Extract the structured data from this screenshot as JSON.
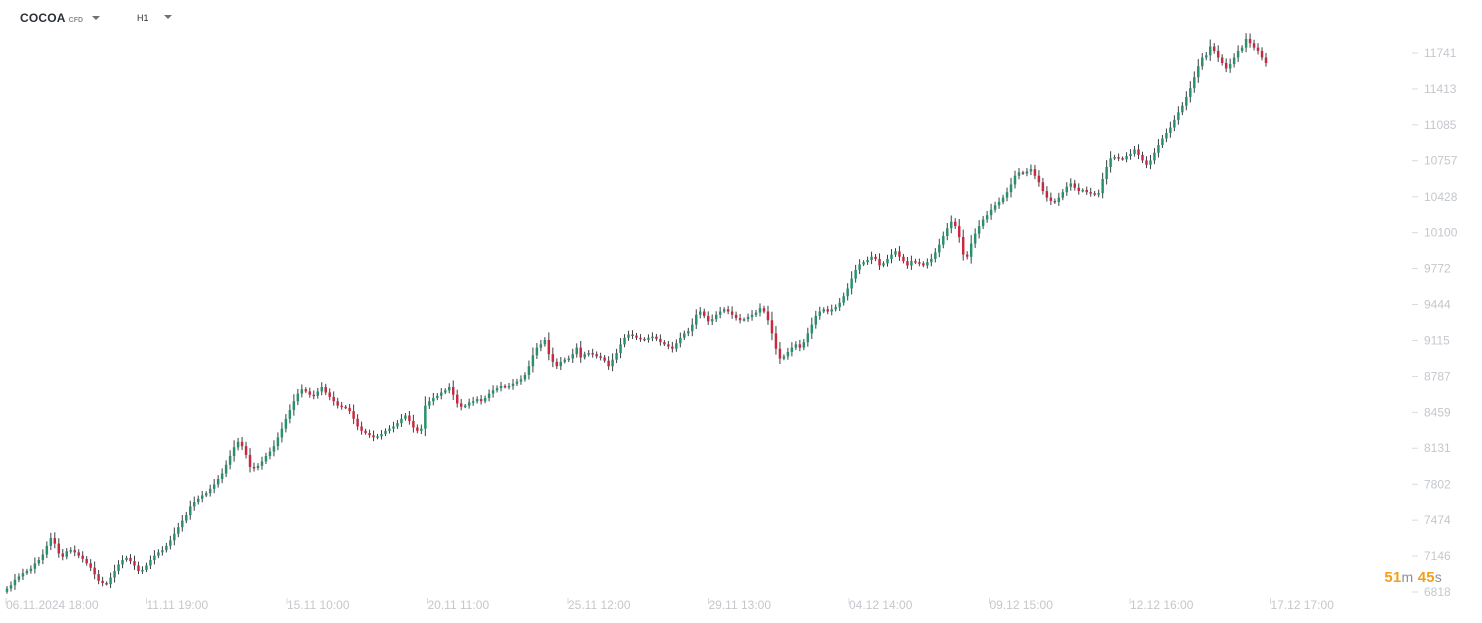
{
  "header": {
    "symbol": "COCOA",
    "symbol_type": "CFD",
    "timeframe": "H1"
  },
  "countdown": {
    "minutes": "51",
    "minutes_unit": "m",
    "seconds": "45",
    "seconds_unit": "s"
  },
  "colors": {
    "up": "#26916a",
    "down": "#c9283f",
    "axis_text": "#c4c7cc",
    "countdown": "#f0a01c"
  },
  "chart_data": {
    "type": "candlestick",
    "symbol": "COCOA",
    "timeframe": "H1",
    "y_ticks": [
      11741,
      11413,
      11085,
      10757,
      10428,
      10100,
      9772,
      9444,
      9115,
      8787,
      8459,
      8131,
      7802,
      7474,
      7146,
      6818
    ],
    "x_ticks": [
      "06.11.2024  18:00",
      "11.11  19:00",
      "15.11  10:00",
      "20.11  11:00",
      "25.11  12:00",
      "29.11  13:00",
      "04.12  14:00",
      "09.12  15:00",
      "12.12  16:00",
      "17.12  17:00"
    ],
    "ylim": [
      6818,
      11930
    ],
    "close_series": [
      6850,
      6880,
      6930,
      6960,
      6990,
      7010,
      7030,
      7080,
      7110,
      7160,
      7240,
      7310,
      7260,
      7170,
      7140,
      7190,
      7200,
      7180,
      7150,
      7120,
      7080,
      7040,
      6980,
      6920,
      6900,
      6890,
      6950,
      7010,
      7070,
      7110,
      7130,
      7100,
      7060,
      7010,
      7020,
      7060,
      7110,
      7150,
      7180,
      7200,
      7240,
      7290,
      7350,
      7410,
      7470,
      7520,
      7600,
      7640,
      7670,
      7700,
      7720,
      7760,
      7800,
      7850,
      7900,
      7980,
      8060,
      8140,
      8190,
      8150,
      8070,
      7960,
      7950,
      7970,
      8010,
      8060,
      8100,
      8150,
      8230,
      8310,
      8400,
      8480,
      8560,
      8630,
      8670,
      8650,
      8620,
      8610,
      8650,
      8690,
      8640,
      8600,
      8560,
      8520,
      8510,
      8500,
      8470,
      8400,
      8330,
      8290,
      8270,
      8250,
      8230,
      8240,
      8260,
      8290,
      8310,
      8330,
      8360,
      8400,
      8430,
      8380,
      8320,
      8290,
      8310,
      8520,
      8560,
      8590,
      8610,
      8640,
      8660,
      8690,
      8620,
      8540,
      8510,
      8520,
      8550,
      8560,
      8580,
      8560,
      8590,
      8630,
      8660,
      8680,
      8700,
      8690,
      8700,
      8720,
      8740,
      8760,
      8800,
      8880,
      8980,
      9050,
      9080,
      9120,
      8990,
      8920,
      8880,
      8920,
      8940,
      8950,
      8990,
      9050,
      8960,
      8990,
      9000,
      8990,
      8970,
      8960,
      8930,
      8880,
      8940,
      9000,
      9080,
      9140,
      9170,
      9160,
      9140,
      9130,
      9120,
      9140,
      9150,
      9130,
      9100,
      9080,
      9060,
      9040,
      9090,
      9140,
      9180,
      9200,
      9260,
      9350,
      9380,
      9340,
      9290,
      9310,
      9350,
      9380,
      9400,
      9380,
      9350,
      9320,
      9300,
      9310,
      9330,
      9350,
      9370,
      9410,
      9380,
      9300,
      9180,
      9040,
      8950,
      8970,
      9010,
      9050,
      9080,
      9050,
      9100,
      9180,
      9260,
      9340,
      9380,
      9400,
      9380,
      9400,
      9420,
      9460,
      9520,
      9590,
      9680,
      9760,
      9810,
      9830,
      9850,
      9880,
      9860,
      9800,
      9820,
      9860,
      9900,
      9930,
      9880,
      9840,
      9800,
      9840,
      9830,
      9820,
      9800,
      9830,
      9860,
      9920,
      9990,
      10070,
      10140,
      10200,
      10160,
      10060,
      9900,
      9880,
      10000,
      10090,
      10160,
      10220,
      10260,
      10310,
      10350,
      10380,
      10420,
      10470,
      10540,
      10620,
      10650,
      10640,
      10660,
      10680,
      10620,
      10560,
      10480,
      10420,
      10390,
      10380,
      10420,
      10470,
      10520,
      10550,
      10510,
      10480,
      10490,
      10470,
      10460,
      10450,
      10460,
      10590,
      10700,
      10780,
      10790,
      10780,
      10770,
      10800,
      10820,
      10860,
      10810,
      10760,
      10720,
      10760,
      10830,
      10900,
      10960,
      11010,
      11060,
      11130,
      11200,
      11260,
      11340,
      11420,
      11520,
      11620,
      11700,
      11720,
      11800,
      11760,
      11700,
      11650,
      11600,
      11640,
      11700,
      11760,
      11790,
      11870,
      11830,
      11790,
      11760,
      11700,
      11650
    ]
  }
}
